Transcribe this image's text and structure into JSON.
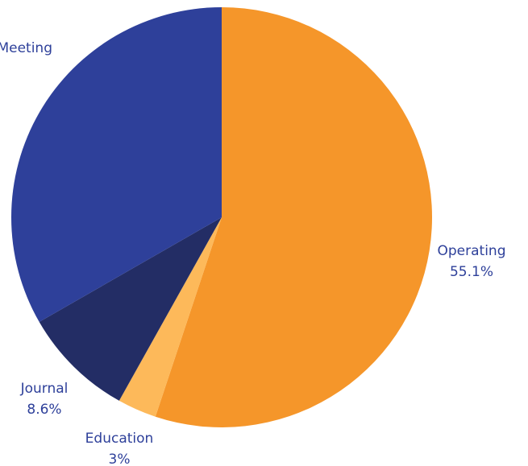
{
  "chart_data": {
    "type": "pie",
    "categories": [
      "Operating",
      "Education",
      "Journal",
      "Meeting"
    ],
    "values": [
      55.1,
      3,
      8.6,
      33.3
    ],
    "value_labels": [
      "55.1%",
      "3%",
      "8.6%",
      null
    ],
    "colors": [
      "#f5962a",
      "#fdb95a",
      "#232d65",
      "#2e409a"
    ]
  }
}
